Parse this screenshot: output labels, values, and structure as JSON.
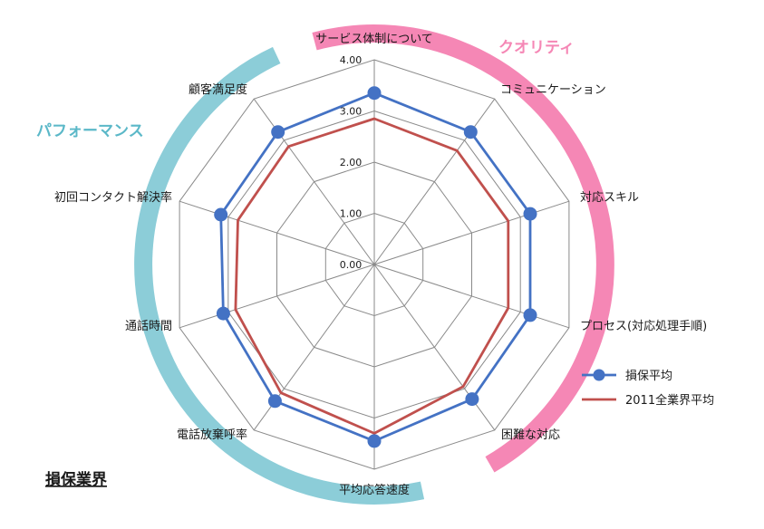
{
  "chart_data": {
    "type": "radar",
    "title": "損保業界",
    "categories": [
      "サービス体制について",
      "コミュニケーション",
      "対応スキル",
      "プロセス(対応処理手順)",
      "困難な対応",
      "平均応答速度",
      "電話放棄呼率",
      "通話時間",
      "初回コンタクト解決率",
      "顧客満足度"
    ],
    "ticks": [
      "0.00",
      "1.00",
      "2.00",
      "3.00",
      "4.00"
    ],
    "rmax": 4,
    "series": [
      {
        "name": "損保平均",
        "color": "#4472c4",
        "marker": "circle",
        "values": [
          3.35,
          3.2,
          3.2,
          3.2,
          3.25,
          3.45,
          3.3,
          3.1,
          3.15,
          3.2
        ]
      },
      {
        "name": "2011全業界平均",
        "color": "#c0504d",
        "marker": "none",
        "values": [
          2.85,
          2.75,
          2.75,
          2.75,
          2.95,
          3.3,
          3.1,
          2.85,
          2.8,
          2.85
        ]
      }
    ],
    "groups": [
      {
        "label": "クオリティ",
        "color": "#f587b5"
      },
      {
        "label": "パフォーマンス",
        "color": "#8ccdd8"
      }
    ],
    "legend_position": "right",
    "grid": true
  }
}
